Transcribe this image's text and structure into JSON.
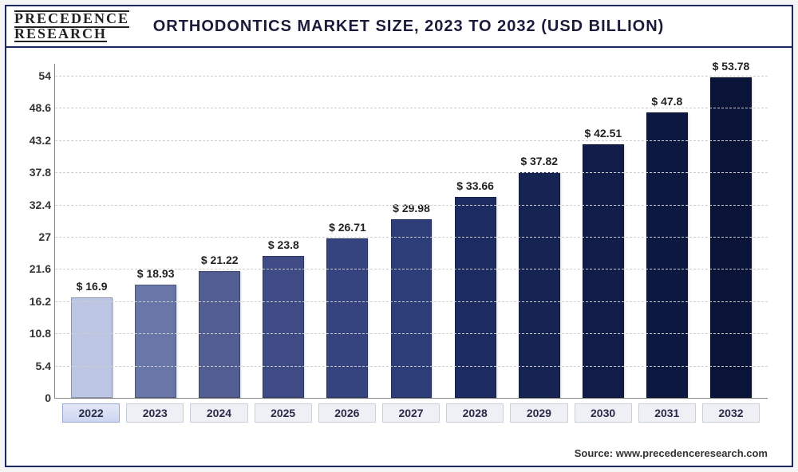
{
  "logo": {
    "line1": "PRECEDENCE",
    "line2": "RESEARCH"
  },
  "title": "ORTHODONTICS MARKET SIZE, 2023 TO 2032 (USD BILLION)",
  "source": "Source: www.precedenceresearch.com",
  "chart": {
    "type": "bar",
    "background_color": "#ffffff",
    "grid_color": "#cfcfcf",
    "grid_dash": "3,4",
    "axis_color": "#888888",
    "y_min": 0,
    "y_max": 56,
    "y_ticks": [
      0,
      5.4,
      10.8,
      16.2,
      21.6,
      27,
      32.4,
      37.8,
      43.2,
      48.6,
      54
    ],
    "label_fontsize": 14,
    "label_fontweight": "bold",
    "label_color": "#333333",
    "value_prefix": "$ ",
    "bar_width_pct": 72,
    "bar_border": "rgba(0,0,0,0.25)",
    "categories": [
      "2022",
      "2023",
      "2024",
      "2025",
      "2026",
      "2027",
      "2028",
      "2029",
      "2030",
      "2031",
      "2032"
    ],
    "values": [
      16.9,
      18.93,
      21.22,
      23.8,
      26.71,
      29.98,
      33.66,
      37.82,
      42.51,
      47.8,
      53.78
    ],
    "bar_colors": [
      "#bcc6e4",
      "#6976a8",
      "#525e92",
      "#3e4b85",
      "#35447f",
      "#2d3d78",
      "#1c2c62",
      "#162454",
      "#111d48",
      "#0d1840",
      "#0a1438"
    ],
    "highlight_index": 0
  }
}
